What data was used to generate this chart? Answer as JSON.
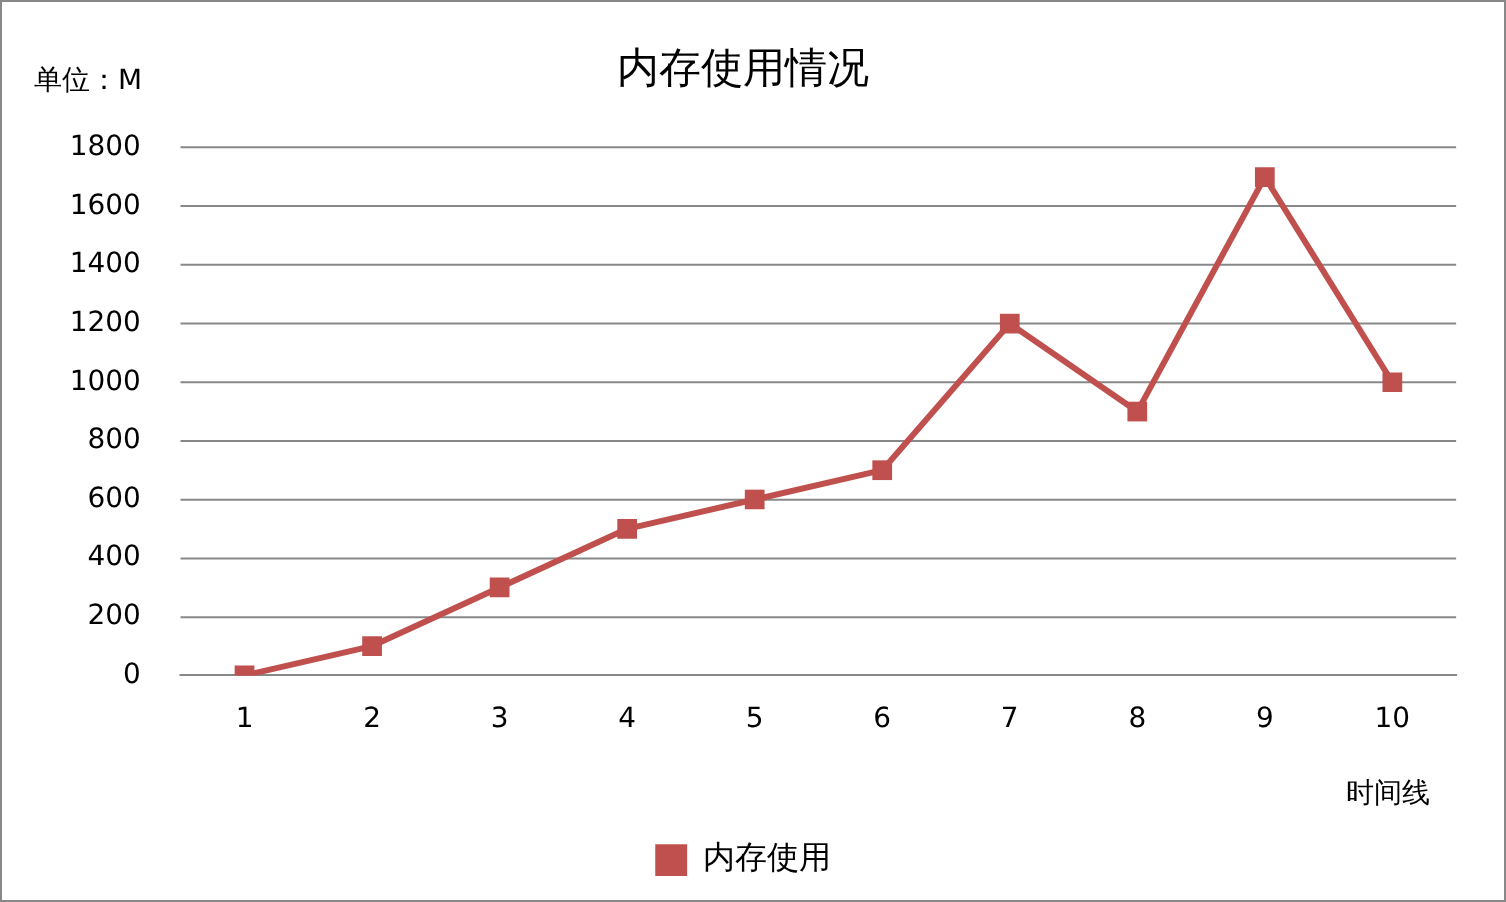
{
  "chart_data": {
    "type": "line",
    "title": "内存使用情况",
    "ylabel": "单位：M",
    "xlabel": "时间线",
    "categories": [
      "1",
      "2",
      "3",
      "4",
      "5",
      "6",
      "7",
      "8",
      "9",
      "10"
    ],
    "series": [
      {
        "name": "内存使用",
        "color": "#c0504d",
        "values": [
          0,
          100,
          300,
          500,
          600,
          700,
          1200,
          900,
          1700,
          1000
        ]
      }
    ],
    "ylim": [
      0,
      1800
    ],
    "yticks": [
      0,
      200,
      400,
      600,
      800,
      1000,
      1200,
      1400,
      1600,
      1800
    ],
    "grid": "y",
    "legend": "bottom",
    "marker": "square",
    "line_style": "solid"
  }
}
